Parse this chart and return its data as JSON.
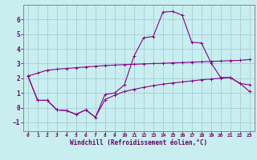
{
  "xlabel": "Windchill (Refroidissement éolien,°C)",
  "bg_color": "#c8eef0",
  "grid_color": "#aad4d8",
  "line_color": "#880088",
  "xlim": [
    -0.5,
    23.5
  ],
  "ylim": [
    -1.6,
    7.0
  ],
  "xticks": [
    0,
    1,
    2,
    3,
    4,
    5,
    6,
    7,
    8,
    9,
    10,
    11,
    12,
    13,
    14,
    15,
    16,
    17,
    18,
    19,
    20,
    21,
    22,
    23
  ],
  "yticks": [
    -1,
    0,
    1,
    2,
    3,
    4,
    5,
    6
  ],
  "curve1_x": [
    0,
    1,
    2,
    3,
    4,
    5,
    6,
    7,
    8,
    9,
    10,
    11,
    12,
    13,
    14,
    15,
    16,
    17,
    18,
    19,
    20,
    21,
    22,
    23
  ],
  "curve1_y": [
    2.15,
    2.35,
    2.55,
    2.62,
    2.67,
    2.72,
    2.77,
    2.82,
    2.87,
    2.9,
    2.93,
    2.95,
    2.98,
    3.0,
    3.02,
    3.05,
    3.07,
    3.1,
    3.12,
    3.15,
    3.17,
    3.2,
    3.22,
    3.28
  ],
  "curve2_x": [
    0,
    1,
    2,
    3,
    4,
    5,
    6,
    7,
    8,
    9,
    10,
    11,
    12,
    13,
    14,
    15,
    16,
    17,
    18,
    19,
    20,
    21,
    22,
    23
  ],
  "curve2_y": [
    2.15,
    0.5,
    0.5,
    -0.15,
    -0.2,
    -0.45,
    -0.15,
    -0.65,
    0.9,
    1.0,
    1.55,
    3.5,
    4.75,
    4.85,
    6.5,
    6.55,
    6.3,
    4.45,
    4.4,
    3.05,
    2.05,
    2.05,
    1.65,
    1.55
  ],
  "curve3_x": [
    0,
    1,
    2,
    3,
    4,
    5,
    6,
    7,
    8,
    9,
    10,
    11,
    12,
    13,
    14,
    15,
    16,
    17,
    18,
    19,
    20,
    21,
    22,
    23
  ],
  "curve3_y": [
    2.15,
    0.5,
    0.5,
    -0.15,
    -0.2,
    -0.45,
    -0.15,
    -0.65,
    0.55,
    0.85,
    1.1,
    1.25,
    1.38,
    1.5,
    1.6,
    1.68,
    1.75,
    1.82,
    1.9,
    1.95,
    2.0,
    2.05,
    1.65,
    1.1
  ]
}
